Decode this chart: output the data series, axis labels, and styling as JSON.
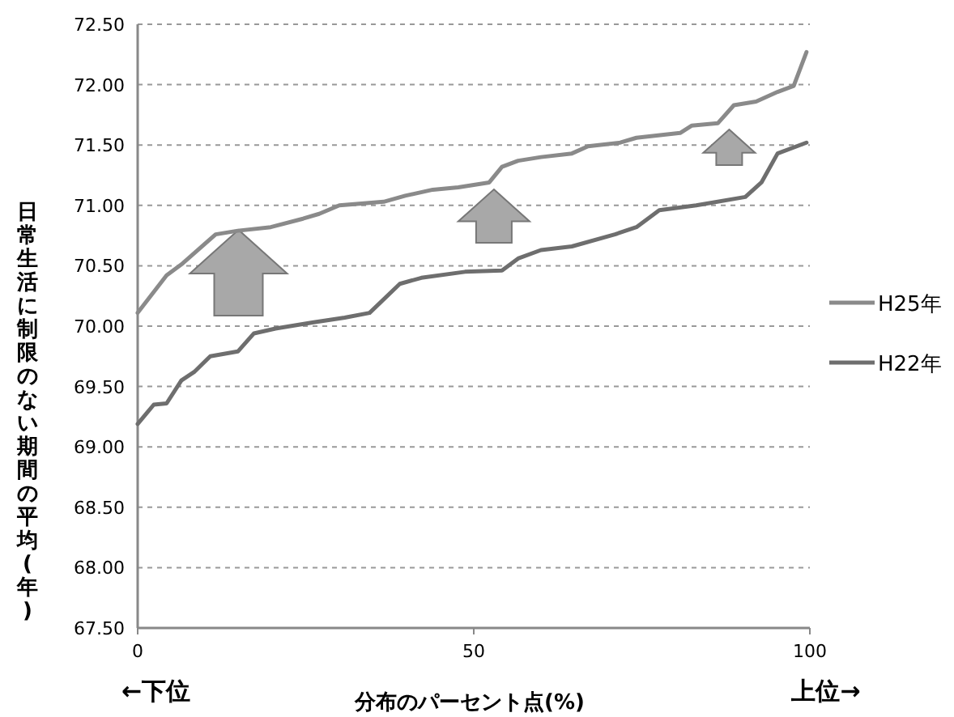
{
  "chart_data": {
    "type": "line",
    "xlabel": "分布のパーセント点(%)",
    "ylabel": "日常生活に制限のない期間の平均(年)",
    "annotations": [
      "←下位",
      "上位→"
    ],
    "xlim": [
      0,
      100
    ],
    "xticks": [
      0,
      50,
      100
    ],
    "ylim": [
      67.5,
      72.5
    ],
    "yticks": [
      {
        "value": 67.5,
        "label": "67.50"
      },
      {
        "value": 68,
        "label": "68.00"
      },
      {
        "value": 68.5,
        "label": "68.50"
      },
      {
        "value": 69,
        "label": "69.00"
      },
      {
        "value": 69.5,
        "label": "69.50"
      },
      {
        "value": 70,
        "label": "70.00"
      },
      {
        "value": 70.5,
        "label": "70.50"
      },
      {
        "value": 71,
        "label": "71.00"
      },
      {
        "value": 71.5,
        "label": "71.50"
      },
      {
        "value": 72,
        "label": "72.00"
      },
      {
        "value": 72.5,
        "label": "72.50"
      }
    ],
    "grid": "y",
    "legend": "right",
    "marker": "none",
    "line_style": "solid",
    "series": [
      {
        "name": "H25年",
        "color": "#8a8a8a",
        "x": [
          0,
          4.3,
          6.7,
          11.6,
          14.9,
          19.8,
          24.6,
          27,
          30,
          36.6,
          39.8,
          43.9,
          47.7,
          52.3,
          54.2,
          56.6,
          60,
          64.6,
          67,
          71.8,
          74.2,
          80.7,
          82.4,
          86.3,
          88.7,
          92,
          95.2,
          97.6,
          99.5
        ],
        "values": [
          70.11,
          70.42,
          70.52,
          70.76,
          70.79,
          70.82,
          70.89,
          70.93,
          71.0,
          71.03,
          71.08,
          71.13,
          71.15,
          71.19,
          71.32,
          71.37,
          71.4,
          71.43,
          71.49,
          71.52,
          71.56,
          71.6,
          71.66,
          71.68,
          71.83,
          71.86,
          71.94,
          71.99,
          72.27
        ]
      },
      {
        "name": "H22年",
        "color": "#6e6e6e",
        "x": [
          0,
          2.4,
          4.3,
          6.5,
          8.4,
          10.8,
          14.9,
          17.3,
          20.5,
          26,
          30.8,
          34.5,
          39,
          42.2,
          48.7,
          54.2,
          56.6,
          60,
          64.6,
          71,
          74.2,
          77.6,
          83.1,
          90.4,
          92.8,
          95.2,
          99.5
        ],
        "values": [
          69.19,
          69.35,
          69.36,
          69.55,
          69.62,
          69.75,
          69.79,
          69.94,
          69.98,
          70.03,
          70.07,
          70.11,
          70.35,
          70.4,
          70.45,
          70.46,
          70.56,
          70.63,
          70.66,
          70.76,
          70.82,
          70.96,
          71.0,
          71.07,
          71.19,
          71.43,
          71.52
        ]
      }
    ]
  }
}
